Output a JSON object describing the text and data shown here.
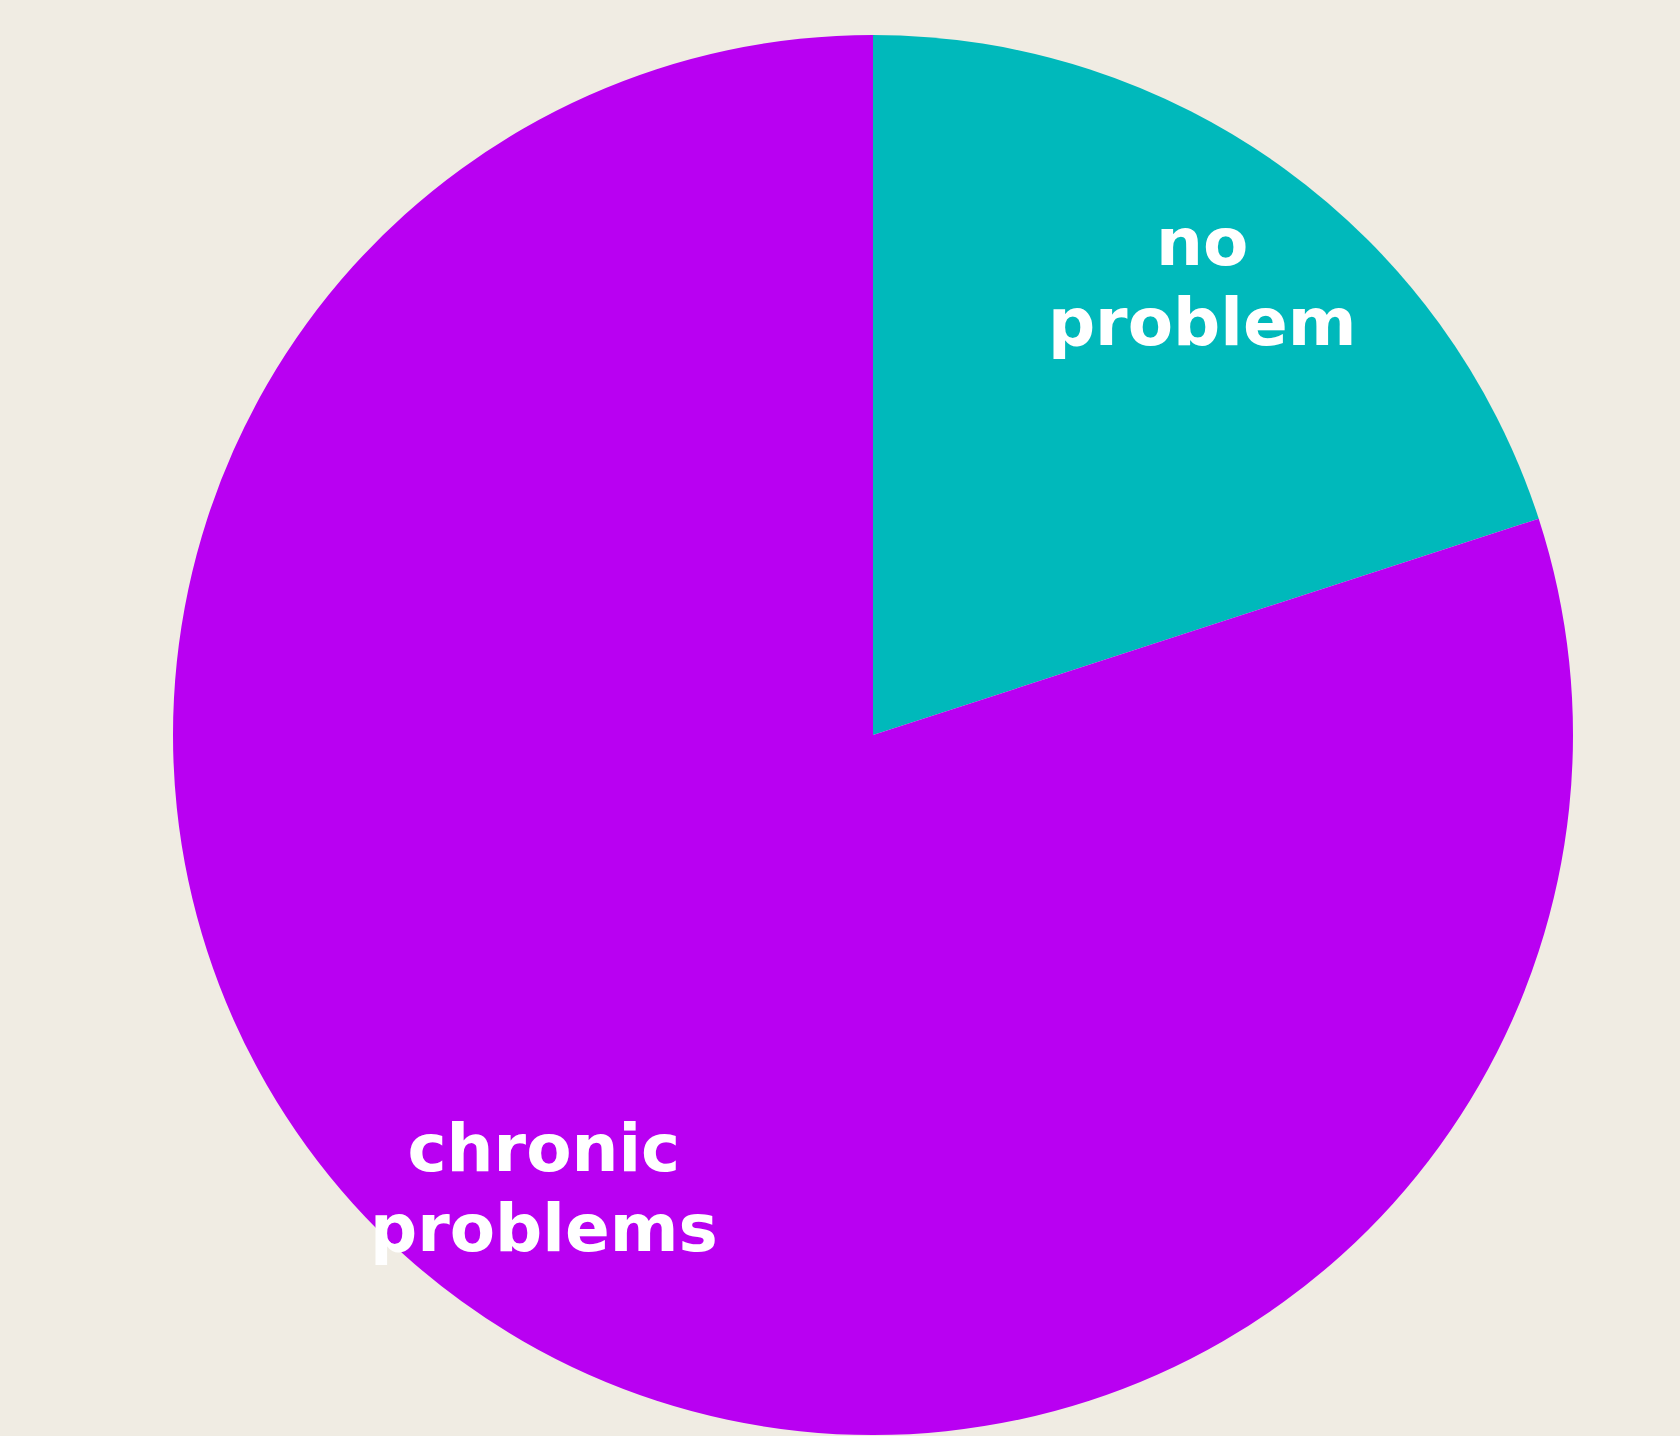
{
  "chart_data": {
    "type": "pie",
    "categories": [
      "no problem",
      "chronic problems"
    ],
    "values": [
      20,
      80
    ],
    "colors": [
      "#00b9bb",
      "#b900f2"
    ]
  }
}
